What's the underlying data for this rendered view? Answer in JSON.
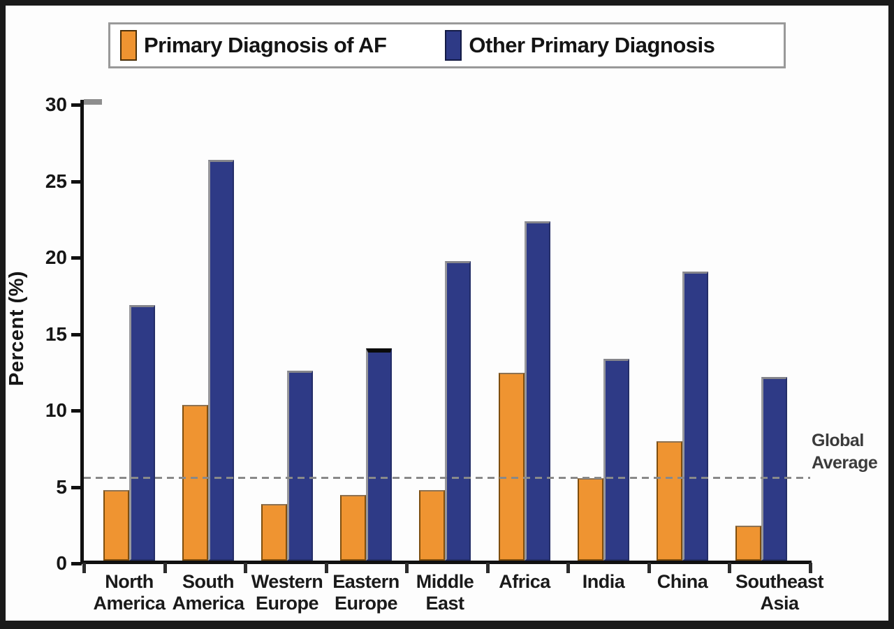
{
  "chart_data": {
    "type": "bar",
    "title": "",
    "ylabel": "Percent (%)",
    "xlabel": "",
    "ylim": [
      0,
      30
    ],
    "yticks": [
      0,
      5,
      10,
      15,
      20,
      25,
      30
    ],
    "grid": false,
    "legend_position": "top",
    "categories": [
      "North\nAmerica",
      "South\nAmerica",
      "Western\nEurope",
      "Eastern\nEurope",
      "Middle\nEast",
      "Africa",
      "India",
      "China",
      "Southeast\nAsia"
    ],
    "series": [
      {
        "name": "Primary Diagnosis of AF",
        "color": "#EF9431",
        "values": [
          4.6,
          10.2,
          3.7,
          4.3,
          4.6,
          12.3,
          5.4,
          7.8,
          2.3
        ]
      },
      {
        "name": "Other Primary Diagnosis",
        "color": "#2E3A86",
        "values": [
          16.7,
          26.2,
          12.4,
          13.9,
          19.6,
          22.2,
          13.2,
          18.9,
          12.0
        ]
      }
    ],
    "reference_line": {
      "value": 5.6,
      "label": "Global\nAverage",
      "style": "dashed",
      "color": "#898989"
    }
  },
  "legend": {
    "items": [
      {
        "label": "Primary Diagnosis of AF",
        "color": "#EF9431"
      },
      {
        "label": "Other Primary Diagnosis",
        "color": "#2E3A86"
      }
    ]
  }
}
